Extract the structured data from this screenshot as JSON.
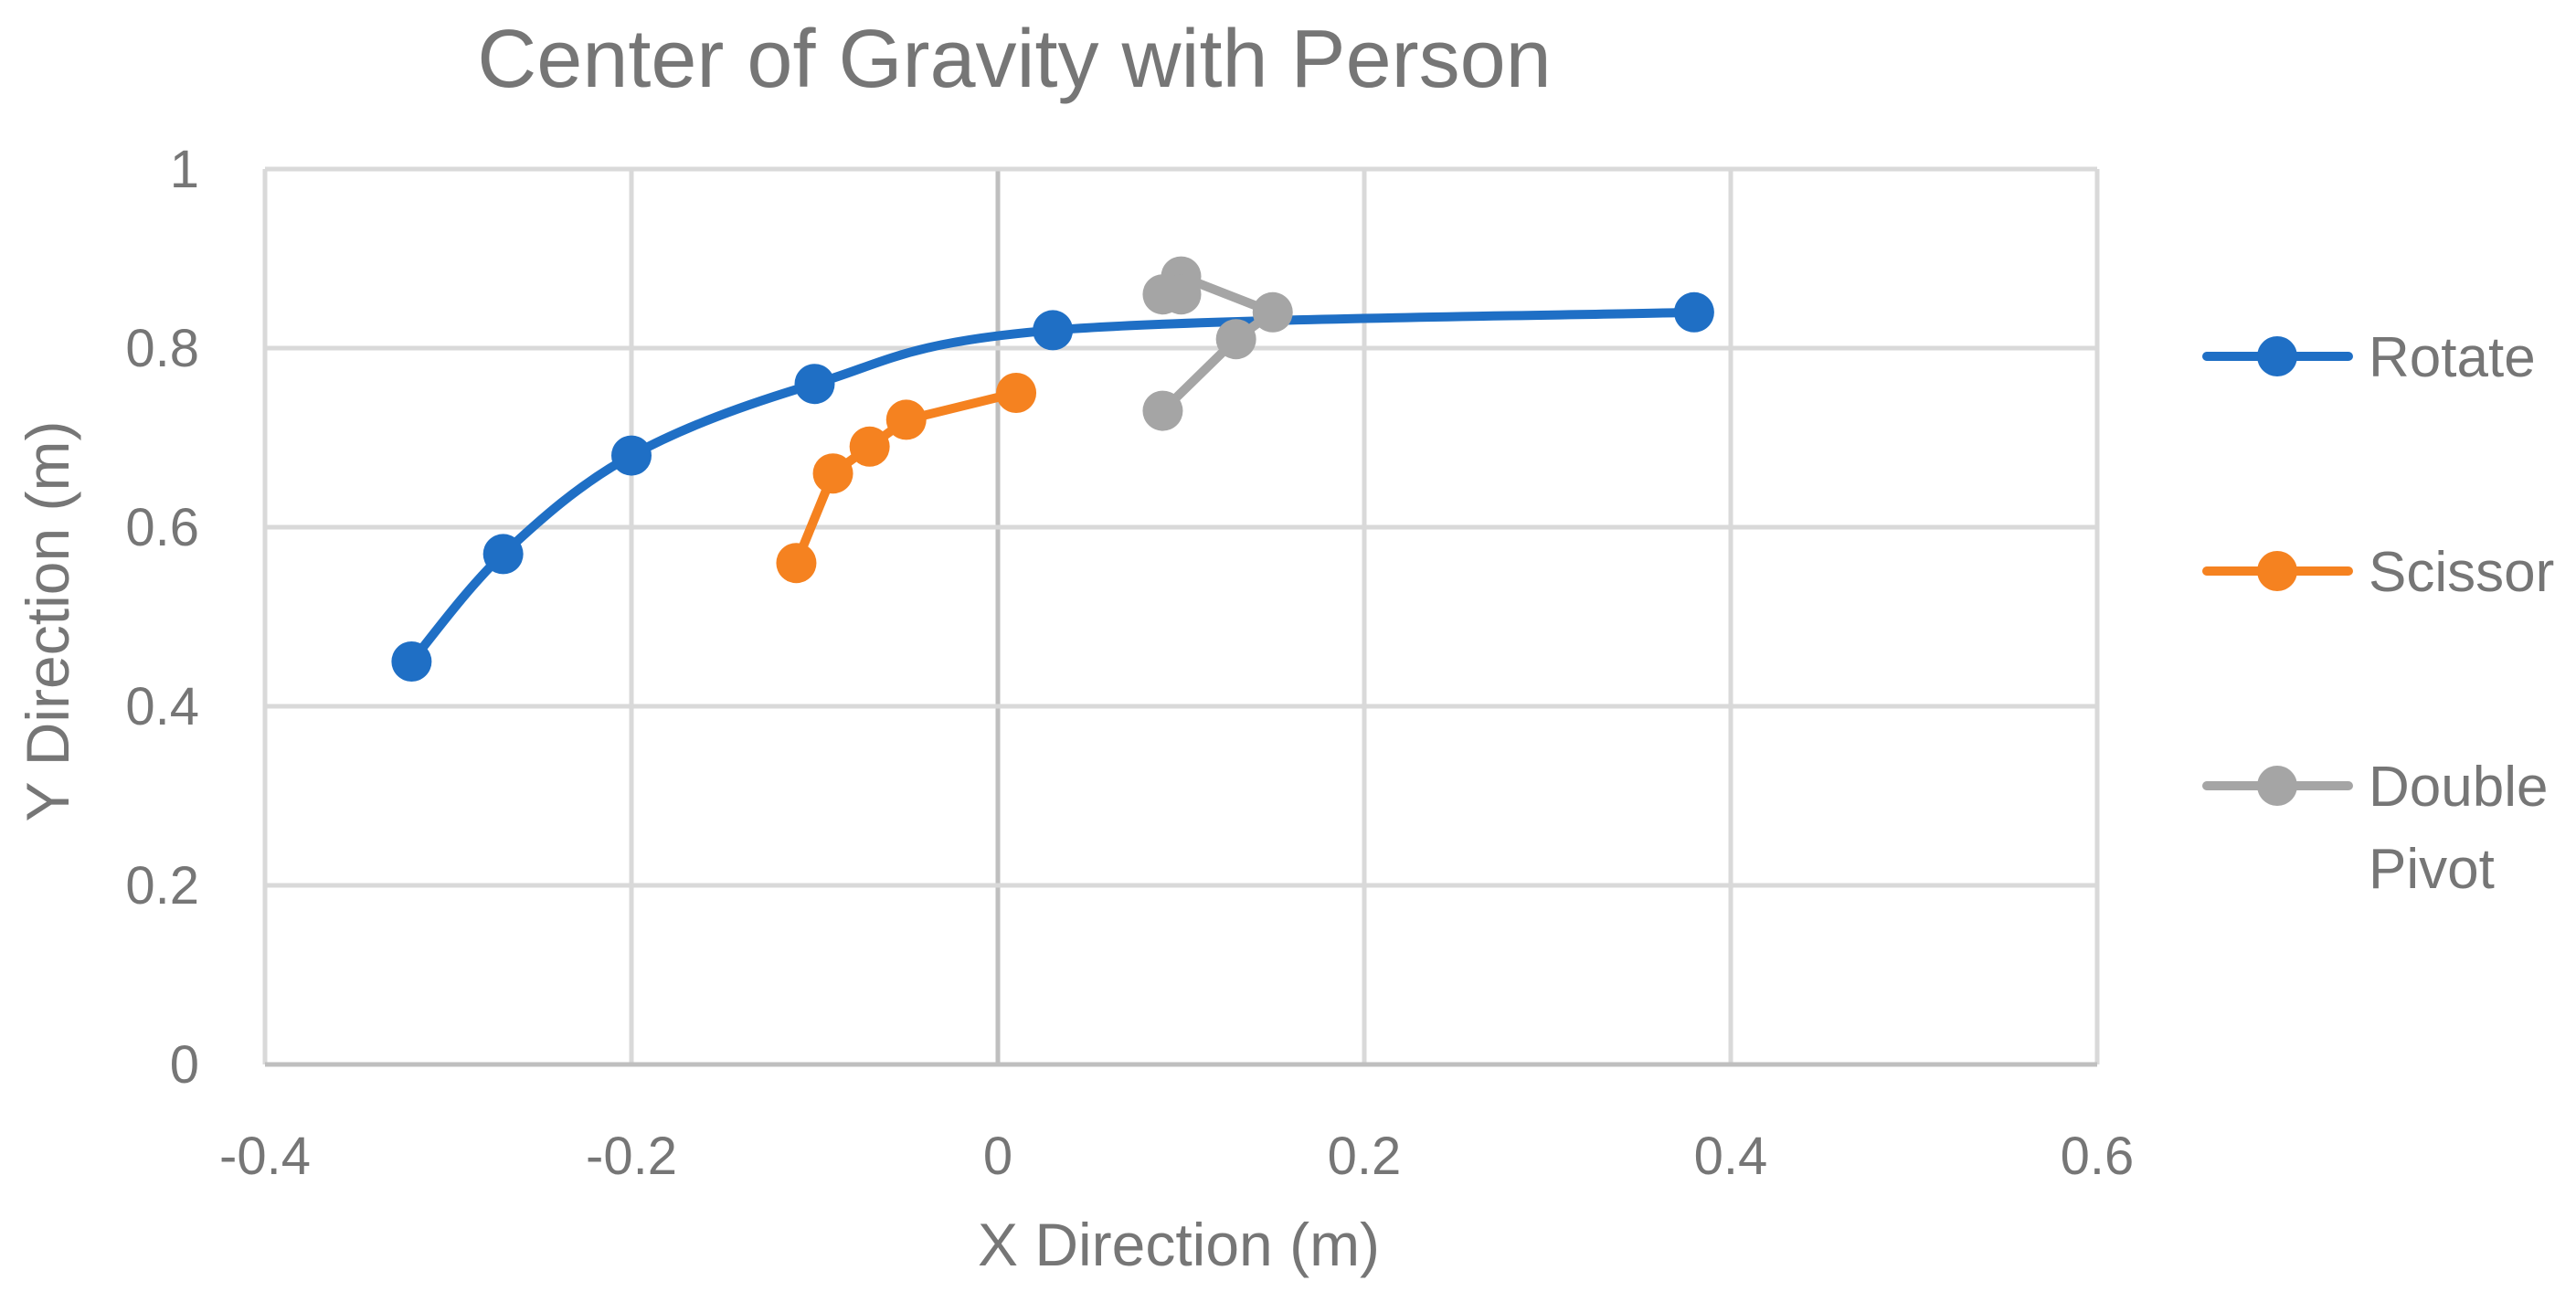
{
  "chart_data": {
    "type": "scatter",
    "title": "Center of Gravity with Person",
    "xlabel": "X Direction (m)",
    "ylabel": "Y Direction (m)",
    "xlim": [
      -0.4,
      0.6
    ],
    "ylim": [
      0,
      1
    ],
    "x_ticks": [
      "-0.4",
      "-0.2",
      "0",
      "0.2",
      "0.4",
      "0.6"
    ],
    "y_ticks": [
      "0",
      "0.2",
      "0.4",
      "0.6",
      "0.8",
      "1"
    ],
    "grid": true,
    "legend_position": "right",
    "series": [
      {
        "name": "Rotate",
        "legend_lines": [
          "Rotate"
        ],
        "color": "#1f6fc5",
        "smooth": true,
        "x": [
          -0.32,
          -0.27,
          -0.2,
          -0.1,
          0.03,
          0.38
        ],
        "y": [
          0.45,
          0.57,
          0.68,
          0.76,
          0.82,
          0.84
        ]
      },
      {
        "name": "Scissor",
        "legend_lines": [
          "Scissor"
        ],
        "color": "#f58220",
        "smooth": false,
        "x": [
          -0.11,
          -0.09,
          -0.07,
          -0.05,
          0.01
        ],
        "y": [
          0.56,
          0.66,
          0.69,
          0.72,
          0.75
        ]
      },
      {
        "name": "Double Pivot",
        "legend_lines": [
          "Double",
          "Pivot"
        ],
        "color": "#a5a5a5",
        "smooth": false,
        "x": [
          0.09,
          0.13,
          0.15,
          0.1,
          0.09,
          0.1
        ],
        "y": [
          0.73,
          0.81,
          0.84,
          0.88,
          0.86,
          0.86
        ]
      }
    ]
  }
}
